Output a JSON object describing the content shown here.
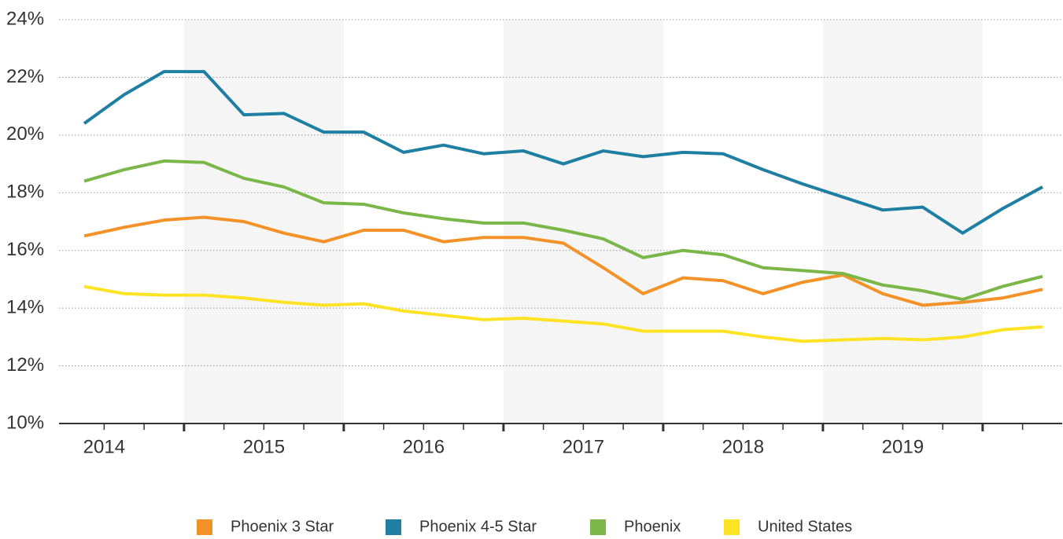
{
  "chart_data": {
    "type": "line",
    "years": [
      "2014",
      "2015",
      "2016",
      "2017",
      "2018",
      "2019"
    ],
    "ylim": [
      10,
      24
    ],
    "yticks": [
      {
        "value": 10,
        "label": "10%"
      },
      {
        "value": 12,
        "label": "12%"
      },
      {
        "value": 14,
        "label": "14%"
      },
      {
        "value": 16,
        "label": "16%"
      },
      {
        "value": 18,
        "label": "18%"
      },
      {
        "value": 20,
        "label": "20%"
      },
      {
        "value": 22,
        "label": "22%"
      },
      {
        "value": 24,
        "label": "24%"
      }
    ],
    "grid": true,
    "legend": "bottom",
    "series": [
      {
        "name": "Phoenix 3 Star",
        "color": "#f4922a",
        "values": [
          16.5,
          16.8,
          17.05,
          17.15,
          17.0,
          16.6,
          16.3,
          16.7,
          16.7,
          16.3,
          16.45,
          16.45,
          16.25,
          15.4,
          14.5,
          15.05,
          14.95,
          14.5,
          14.9,
          15.15,
          14.5,
          14.1,
          14.2,
          14.35,
          14.65
        ]
      },
      {
        "name": "Phoenix 4-5 Star",
        "color": "#1f7fa3",
        "values": [
          20.4,
          21.4,
          22.2,
          22.2,
          20.7,
          20.75,
          20.1,
          20.1,
          19.4,
          19.65,
          19.35,
          19.45,
          19.0,
          19.45,
          19.25,
          19.4,
          19.35,
          18.8,
          18.3,
          17.85,
          17.4,
          17.5,
          16.6,
          17.45,
          18.2
        ]
      },
      {
        "name": "Phoenix",
        "color": "#7ab648",
        "values": [
          18.4,
          18.8,
          19.1,
          19.05,
          18.5,
          18.2,
          17.65,
          17.6,
          17.3,
          17.1,
          16.95,
          16.95,
          16.7,
          16.4,
          15.75,
          16.0,
          15.85,
          15.4,
          15.3,
          15.2,
          14.8,
          14.6,
          14.3,
          14.75,
          15.1
        ]
      },
      {
        "name": "United States",
        "color": "#fde324",
        "values": [
          14.75,
          14.5,
          14.45,
          14.45,
          14.35,
          14.2,
          14.1,
          14.15,
          13.9,
          13.75,
          13.6,
          13.65,
          13.55,
          13.45,
          13.2,
          13.2,
          13.2,
          13.0,
          12.85,
          12.9,
          12.95,
          12.9,
          13.0,
          13.25,
          13.35
        ]
      }
    ]
  }
}
